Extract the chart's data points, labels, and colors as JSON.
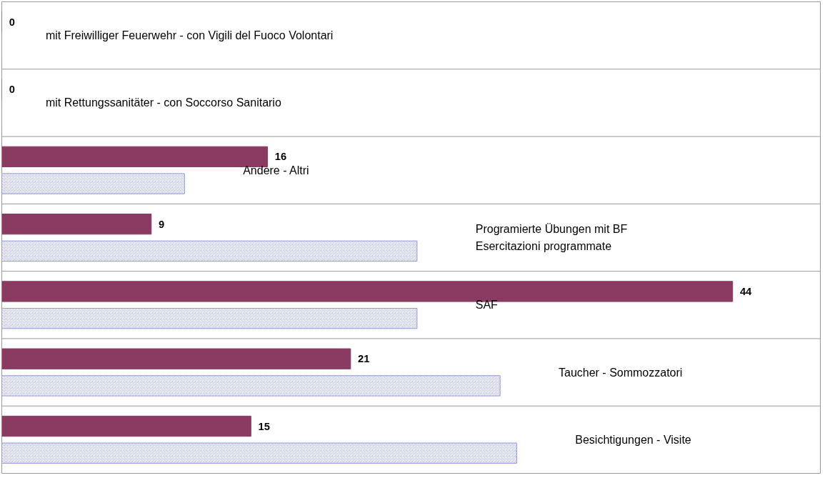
{
  "chart_data": {
    "type": "bar",
    "orientation": "horizontal",
    "grid": "y",
    "categories": [
      "mit Freiwilliger Feuerwehr - con Vigili del Fuoco Volontari",
      "mit Rettungssanitäter  - con Soccorso Sanitario",
      "Andere - Altri",
      "Programierte Übungen mit BF\nEsercitazioni programmate",
      "SAF",
      "Taucher - Sommozzatori",
      "Besichtigungen - Visite"
    ],
    "series": [
      {
        "color": "#8b3a62",
        "values": [
          0,
          0,
          16,
          9,
          44,
          21,
          15
        ],
        "value_labels": [
          "0",
          "0",
          "16",
          "9",
          "44",
          "21",
          "15"
        ]
      },
      {
        "color": "#8f95e0",
        "values": [
          0,
          0,
          11,
          25,
          25,
          30,
          31
        ]
      }
    ]
  }
}
